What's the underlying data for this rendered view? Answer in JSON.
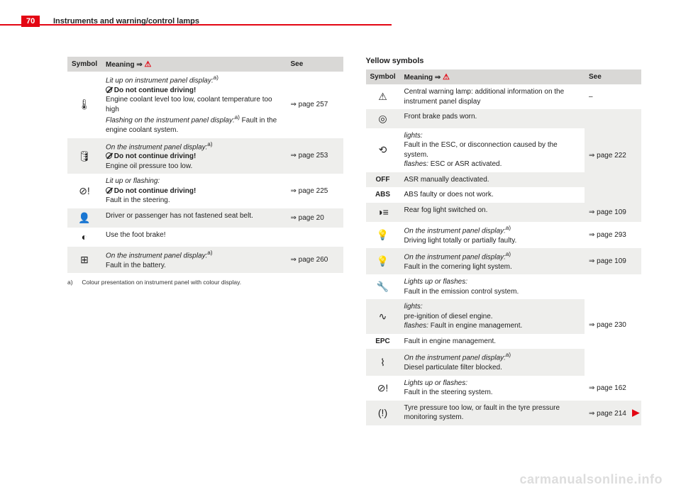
{
  "page_number": "70",
  "section": "Instruments and warning/control lamps",
  "colors": {
    "accent": "#e30613",
    "header_bg": "#d9d8d6",
    "zebra_bg": "#eeeeec",
    "text": "#222222",
    "watermark": "#dddddd"
  },
  "left_table": {
    "headers": {
      "symbol": "Symbol",
      "meaning": "Meaning ⇒",
      "see": "See"
    },
    "rows": [
      {
        "icon": "🌡",
        "italic1": "Lit up on instrument panel display:",
        "sup1": "a)",
        "ban_bold": "Do not continue driving!",
        "plain1": "Engine coolant level too low, coolant temperature too high",
        "italic2": "Flashing on the instrument panel display:",
        "sup2": "a)",
        "plain2": "Fault in the engine coolant system.",
        "see": "⇒ page 257"
      },
      {
        "icon": "🛢",
        "zebra": true,
        "italic1": "On the instrument panel display:",
        "sup1": "a)",
        "ban_bold": "Do not continue driving!",
        "plain1": "Engine oil pressure too low.",
        "see": "⇒ page 253"
      },
      {
        "icon": "⊘!",
        "italic1": "Lit up or flashing:",
        "ban_bold": "Do not continue driving!",
        "plain1": "Fault in the steering.",
        "see": "⇒ page 225"
      },
      {
        "icon": "👤",
        "zebra": true,
        "plain1": "Driver or passenger has not fastened seat belt.",
        "see": "⇒ page 20"
      },
      {
        "icon": "◐",
        "plain1": "Use the foot brake!",
        "see": ""
      },
      {
        "icon": "⊞",
        "zebra": true,
        "italic1": "On the instrument panel display:",
        "sup1": "a)",
        "plain1": "Fault in the battery.",
        "see": "⇒ page 260"
      }
    ],
    "footnote": {
      "tag": "a)",
      "text": "Colour presentation on instrument panel with colour display."
    }
  },
  "right_section": {
    "title": "Yellow symbols",
    "headers": {
      "symbol": "Symbol",
      "meaning": "Meaning ⇒",
      "see": "See"
    },
    "rows": [
      {
        "icon": "⚠",
        "plain1": "Central warning lamp: additional information on the instrument panel display",
        "see": "–"
      },
      {
        "icon": "◎",
        "zebra": true,
        "plain1": "Front brake pads worn.",
        "see_rowspan": 4,
        "see": "⇒ page 222"
      },
      {
        "icon": "⟲",
        "italic1": "lights:",
        "plain1": "Fault in the ESC, or disconnection caused by the system.",
        "italic2": "flashes:",
        "plain2": "ESC or ASR activated."
      },
      {
        "icon": "OFF",
        "zebra": true,
        "plain1": "ASR manually deactivated."
      },
      {
        "icon": "ABS",
        "plain1": "ABS faulty or does not work."
      },
      {
        "icon": "◑≡",
        "zebra": true,
        "plain1": "Rear fog light switched on.",
        "see": "⇒ page 109"
      },
      {
        "icon": "💡",
        "see_rowspan": 1,
        "italic1": "On the instrument panel display:",
        "sup1": "a)",
        "plain1": "Driving light totally or partially faulty.",
        "see": "⇒ page 293"
      },
      {
        "icon": "💡",
        "zebra": true,
        "italic1": "On the instrument panel display:",
        "sup1": "a)",
        "plain1": "Fault in the cornering light system.",
        "see": "⇒ page 109"
      },
      {
        "icon": "🔧",
        "italic1": "Lights up or flashes:",
        "plain1": "Fault in the emission control system.",
        "see_rowspan": 4,
        "see": "⇒ page 230"
      },
      {
        "icon": "∿",
        "zebra": true,
        "italic1": "lights:",
        "plain1": "pre-ignition of diesel engine.",
        "italic2": "flashes:",
        "plain2": "Fault in engine management."
      },
      {
        "icon": "EPC",
        "plain1": "Fault in engine management."
      },
      {
        "icon": "⌇",
        "zebra": true,
        "italic1": "On the instrument panel display:",
        "sup1": "a)",
        "plain1": "Diesel particulate filter blocked."
      },
      {
        "icon": "⊘!",
        "italic1": "Lights up or flashes:",
        "plain1": "Fault in the steering system.",
        "see": "⇒ page 162"
      },
      {
        "icon": "(!)",
        "zebra": true,
        "plain1": "Tyre pressure too low, or fault in the tyre pressure monitoring system.",
        "see": "⇒ page 214",
        "arrow": "▶"
      }
    ]
  },
  "watermark": "carmanualsonline.info"
}
